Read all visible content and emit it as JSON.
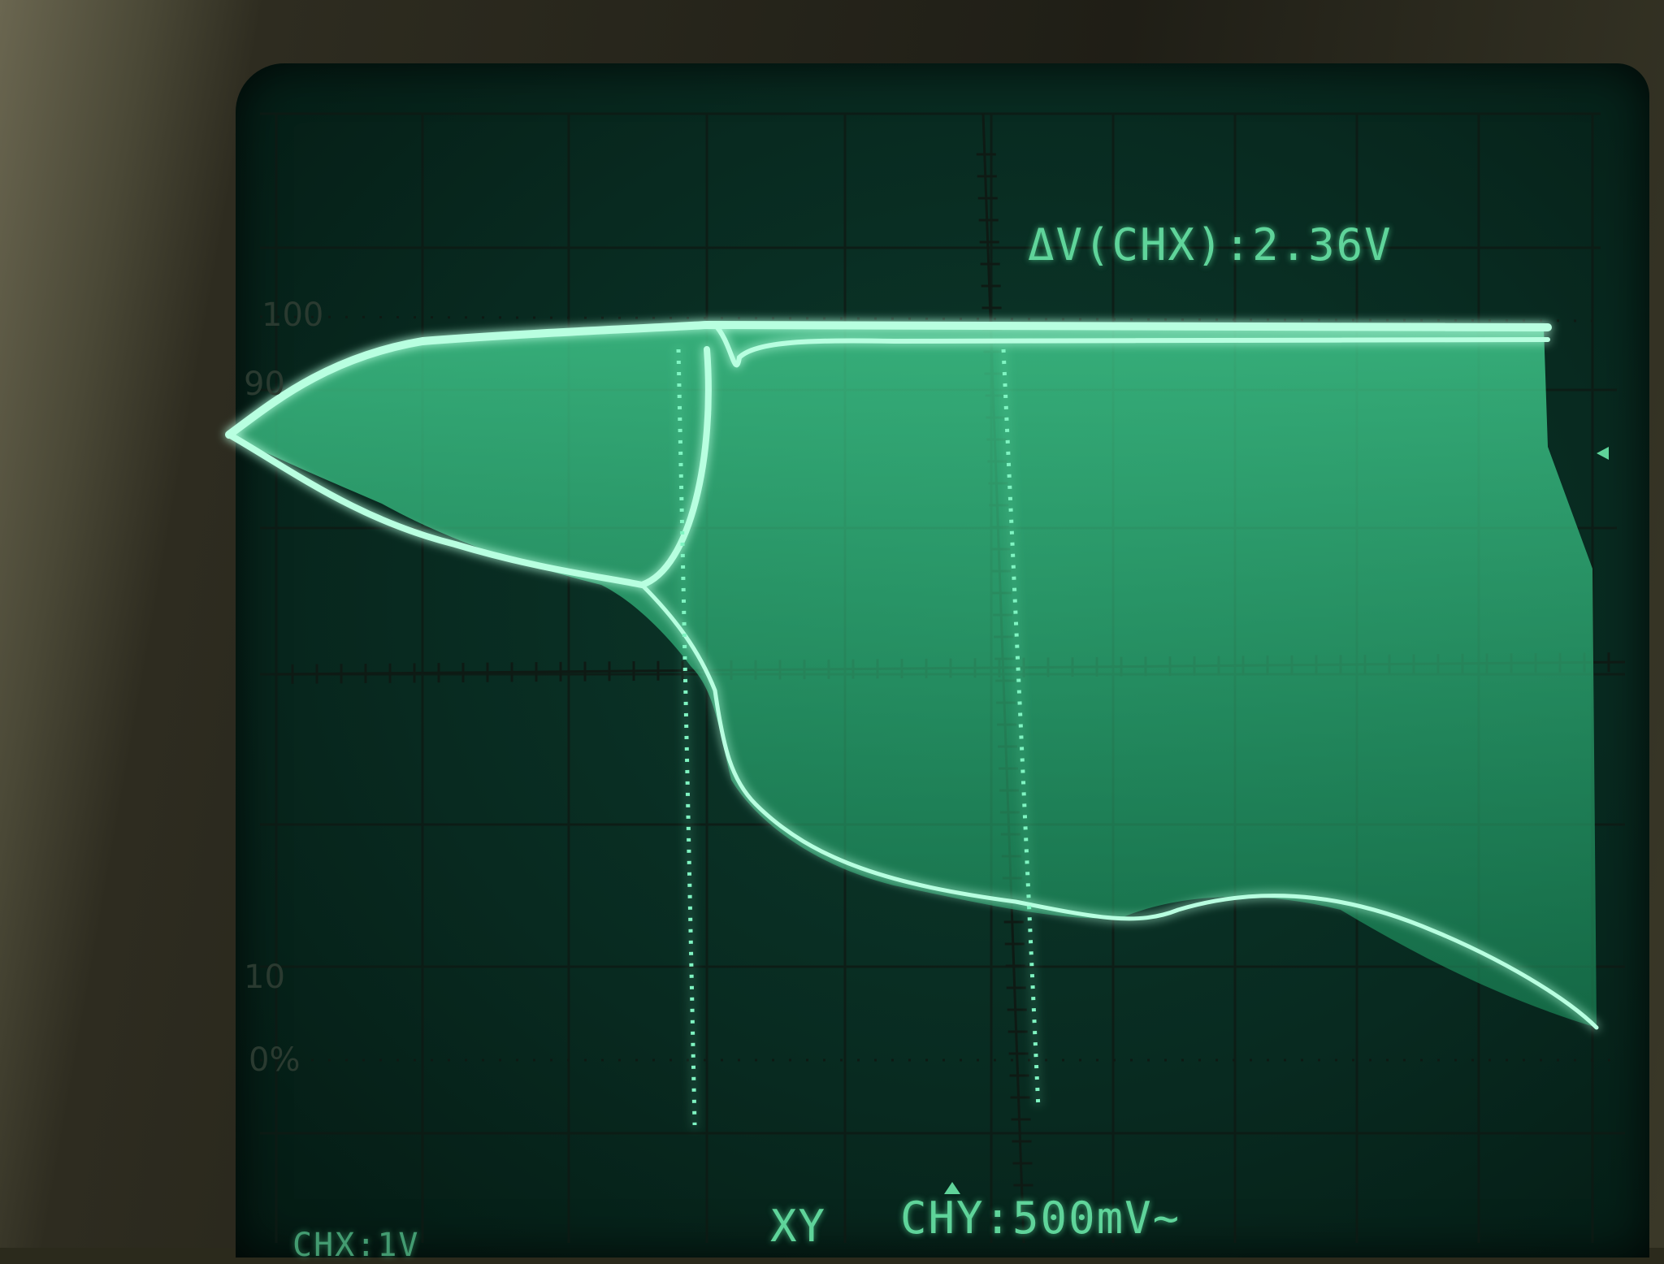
{
  "readouts": {
    "delta_v": "ΔV(CHX):2.36V",
    "ch_y": "CHY:500mV~",
    "mode": "XY",
    "ch_x_partial": "CHX:1V"
  },
  "graticule_labels": {
    "top": "100",
    "upper": "90",
    "lower": "10",
    "bottom": "0%"
  },
  "colors": {
    "trace": "#6ff0b8",
    "trace_fill": "#2fbf82",
    "screen": "#0a3326",
    "text": "#5fd49a"
  }
}
